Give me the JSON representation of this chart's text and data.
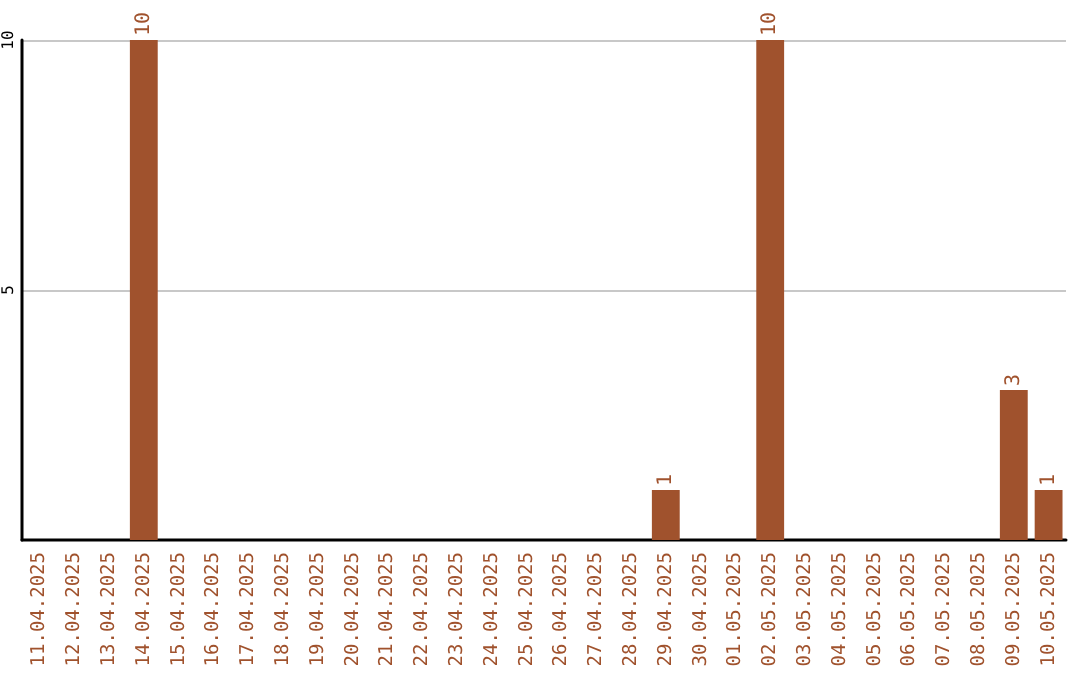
{
  "chart_data": {
    "type": "bar",
    "categories": [
      "11.04.2025",
      "12.04.2025",
      "13.04.2025",
      "14.04.2025",
      "15.04.2025",
      "16.04.2025",
      "17.04.2025",
      "18.04.2025",
      "19.04.2025",
      "20.04.2025",
      "21.04.2025",
      "22.04.2025",
      "23.04.2025",
      "24.04.2025",
      "25.04.2025",
      "26.04.2025",
      "27.04.2025",
      "28.04.2025",
      "29.04.2025",
      "30.04.2025",
      "01.05.2025",
      "02.05.2025",
      "03.05.2025",
      "04.05.2025",
      "05.05.2025",
      "06.05.2025",
      "07.05.2025",
      "08.05.2025",
      "09.05.2025",
      "10.05.2025"
    ],
    "values": [
      0,
      0,
      0,
      10,
      0,
      0,
      0,
      0,
      0,
      0,
      0,
      0,
      0,
      0,
      0,
      0,
      0,
      0,
      1,
      0,
      0,
      10,
      0,
      0,
      0,
      0,
      0,
      0,
      3,
      1
    ],
    "value_labels": [
      null,
      null,
      null,
      "10",
      null,
      null,
      null,
      null,
      null,
      null,
      null,
      null,
      null,
      null,
      null,
      null,
      null,
      null,
      "1",
      null,
      null,
      "10",
      null,
      null,
      null,
      null,
      null,
      null,
      "3",
      "1"
    ],
    "color": "#a0522d",
    "ylim": [
      0,
      10
    ],
    "yticks": [
      5,
      10
    ],
    "grid": "y"
  }
}
